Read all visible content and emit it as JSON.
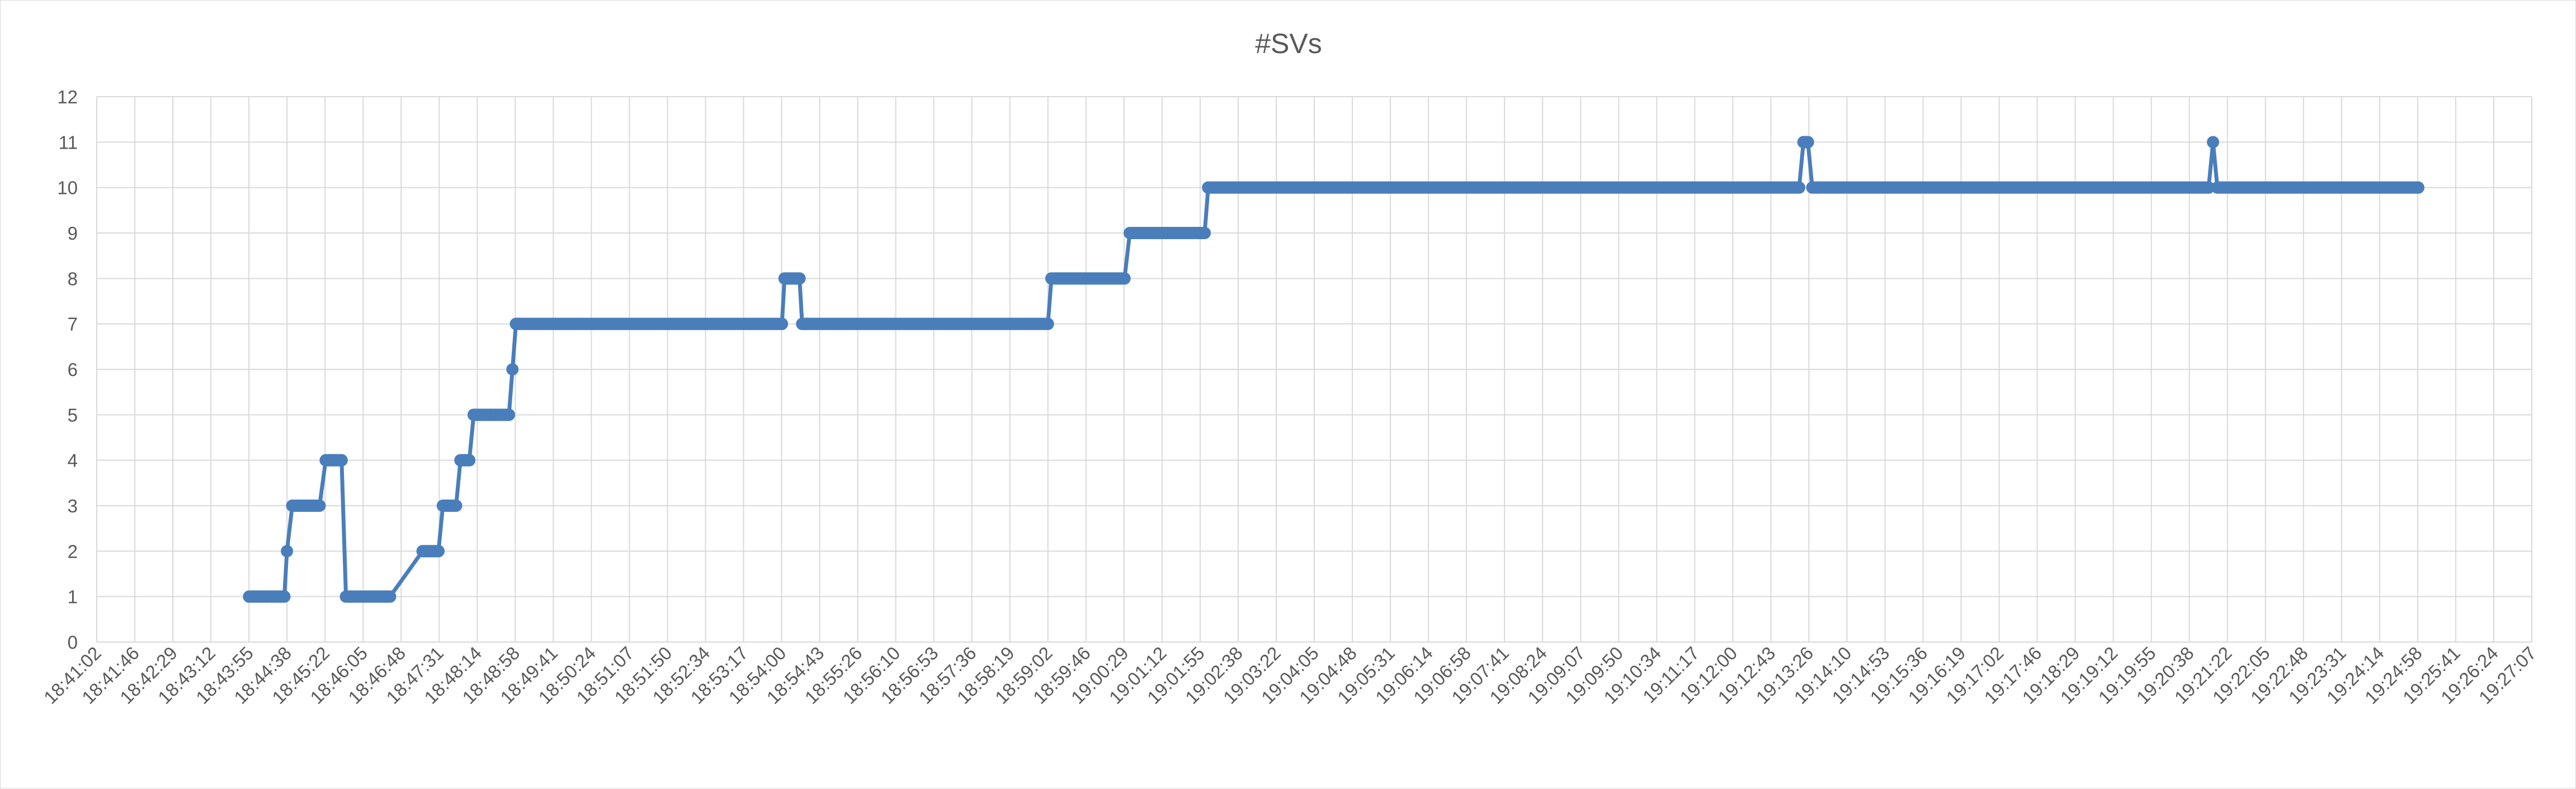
{
  "chart_data": {
    "type": "line",
    "title": "#SVs",
    "xlabel": "",
    "ylabel": "",
    "ylim": [
      0,
      12
    ],
    "yticks": [
      0,
      1,
      2,
      3,
      4,
      5,
      6,
      7,
      8,
      9,
      10,
      11,
      12
    ],
    "grid": true,
    "legend": "none",
    "color": "#4a7ebb",
    "x_tick_labels": [
      "18:41:02",
      "18:41:46",
      "18:42:29",
      "18:43:12",
      "18:43:55",
      "18:44:38",
      "18:45:22",
      "18:46:05",
      "18:46:48",
      "18:47:31",
      "18:48:14",
      "18:48:58",
      "18:49:41",
      "18:50:24",
      "18:51:07",
      "18:51:50",
      "18:52:34",
      "18:53:17",
      "18:54:00",
      "18:54:43",
      "18:55:26",
      "18:56:10",
      "18:56:53",
      "18:57:36",
      "18:58:19",
      "18:59:02",
      "18:59:46",
      "19:00:29",
      "19:01:12",
      "19:01:55",
      "19:02:38",
      "19:03:22",
      "19:04:05",
      "19:04:48",
      "19:05:31",
      "19:06:14",
      "19:06:58",
      "19:07:41",
      "19:08:24",
      "19:09:07",
      "19:09:50",
      "19:10:34",
      "19:11:17",
      "19:12:00",
      "19:12:43",
      "19:13:26",
      "19:14:10",
      "19:14:53",
      "19:15:36",
      "19:16:19",
      "19:17:02",
      "19:17:46",
      "19:18:29",
      "19:19:12",
      "19:19:55",
      "19:20:38",
      "19:21:22",
      "19:22:05",
      "19:22:48",
      "19:23:31",
      "19:24:14",
      "19:24:58",
      "19:25:41",
      "19:26:24",
      "19:27:07"
    ],
    "series": [
      {
        "x": [
          "18:43:55",
          "18:44:00",
          "18:44:05",
          "18:44:10",
          "18:44:15",
          "18:44:20",
          "18:44:25",
          "18:44:30",
          "18:44:35",
          "18:44:38",
          "18:44:44",
          "18:44:50",
          "18:44:55",
          "18:45:00",
          "18:45:05",
          "18:45:10",
          "18:45:15",
          "18:45:22",
          "18:45:25",
          "18:45:30",
          "18:45:35",
          "18:45:40",
          "18:45:45",
          "18:45:50",
          "18:46:25",
          "18:46:30",
          "18:46:35",
          "18:47:12",
          "18:47:15",
          "18:47:20",
          "18:47:25",
          "18:47:30",
          "18:47:35",
          "18:47:40",
          "18:47:45",
          "18:47:50",
          "18:47:55",
          "18:48:00",
          "18:48:05",
          "18:48:10",
          "18:48:12",
          "18:48:20",
          "18:48:25",
          "18:48:30",
          "18:48:35",
          "18:48:40",
          "18:48:45",
          "18:48:50",
          "18:48:54",
          "18:48:58",
          "18:49:02",
          "18:54:00",
          "18:54:03",
          "18:54:10",
          "18:54:15",
          "18:54:20",
          "18:54:23",
          "18:54:28",
          "18:59:02",
          "18:59:06",
          "19:00:29",
          "19:00:35",
          "19:00:40",
          "19:01:55",
          "19:02:00",
          "19:02:04",
          "19:13:15",
          "19:13:20",
          "19:13:25",
          "19:13:30",
          "19:13:35",
          "19:21:00",
          "19:21:05",
          "19:21:10",
          "19:24:58"
        ],
        "values": [
          1,
          1,
          1,
          1,
          1,
          1,
          1,
          1,
          1,
          2,
          3,
          3,
          3,
          3,
          3,
          3,
          3,
          4,
          4,
          4,
          4,
          4,
          1,
          1,
          1,
          1,
          1,
          2,
          2,
          2,
          2,
          2,
          3,
          3,
          3,
          3,
          4,
          4,
          4,
          5,
          5,
          5,
          5,
          5,
          5,
          5,
          5,
          5,
          6,
          7,
          7,
          7,
          8,
          8,
          8,
          8,
          7,
          7,
          7,
          8,
          8,
          9,
          9,
          9,
          9,
          10,
          10,
          11,
          11,
          10,
          10,
          10,
          11,
          10,
          10
        ]
      }
    ]
  }
}
